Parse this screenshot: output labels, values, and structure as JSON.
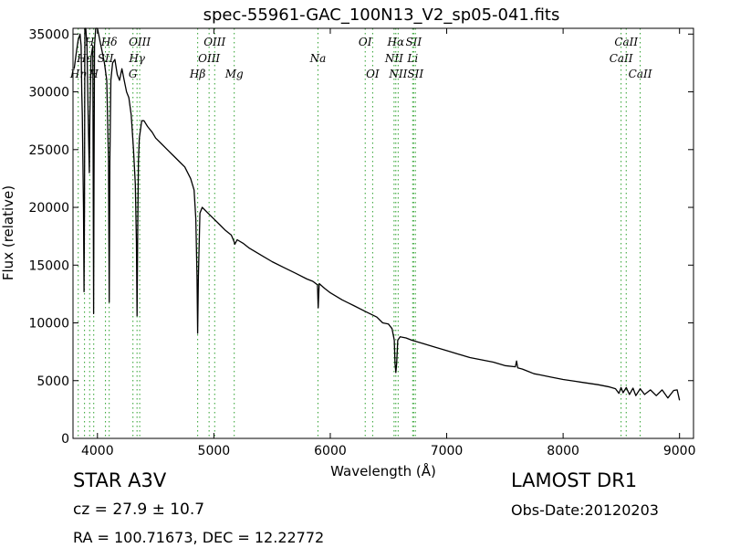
{
  "chart_data": {
    "type": "line",
    "title": "spec-55961-GAC_100N13_V2_sp05-041.fits",
    "xlabel": "Wavelength (Å)",
    "ylabel": "Flux (relative)",
    "xlim": [
      3790,
      9120
    ],
    "ylim": [
      0,
      35500
    ],
    "xticks": [
      4000,
      5000,
      6000,
      7000,
      8000,
      9000
    ],
    "yticks": [
      0,
      5000,
      10000,
      15000,
      20000,
      25000,
      30000,
      35000
    ],
    "line_color": "#000000",
    "marker_color": "#2ca02c",
    "series": [
      {
        "x": [
          3800,
          3820,
          3835,
          3845,
          3850,
          3860,
          3865,
          3870,
          3880,
          3885,
          3889,
          3892,
          3900,
          3910,
          3920,
          3930,
          3935,
          3945,
          3960,
          3967,
          3970,
          3975,
          3985,
          4000,
          4020,
          4040,
          4060,
          4080,
          4095,
          4101,
          4107,
          4115,
          4130,
          4150,
          4170,
          4190,
          4210,
          4230,
          4250,
          4270,
          4290,
          4310,
          4325,
          4335,
          4340,
          4345,
          4352,
          4360,
          4380,
          4400,
          4430,
          4470,
          4500,
          4550,
          4600,
          4650,
          4700,
          4750,
          4800,
          4830,
          4845,
          4855,
          4861,
          4867,
          4880,
          4900,
          4950,
          5000,
          5050,
          5100,
          5150,
          5175,
          5180,
          5200,
          5250,
          5300,
          5400,
          5500,
          5600,
          5700,
          5800,
          5850,
          5890,
          5896,
          5905,
          5950,
          6000,
          6100,
          6200,
          6300,
          6400,
          6450,
          6500,
          6530,
          6550,
          6556,
          6563,
          6570,
          6580,
          6600,
          6650,
          6700,
          6800,
          6900,
          7000,
          7100,
          7200,
          7300,
          7400,
          7500,
          7590,
          7600,
          7610,
          7650,
          7700,
          7750,
          7800,
          7900,
          8000,
          8100,
          8200,
          8300,
          8400,
          8450,
          8480,
          8498,
          8515,
          8542,
          8570,
          8600,
          8625,
          8662,
          8700,
          8750,
          8800,
          8850,
          8900,
          8950,
          8980,
          9000
        ],
        "y": [
          32000,
          33500,
          34500,
          34800,
          35000,
          34000,
          30000,
          28000,
          20000,
          12700,
          20000,
          35500,
          36000,
          34000,
          28000,
          23000,
          28000,
          33000,
          34000,
          10800,
          22000,
          34000,
          36000,
          35800,
          34500,
          33500,
          32500,
          31000,
          24000,
          11800,
          24000,
          31000,
          32500,
          32800,
          31500,
          31000,
          32000,
          31000,
          30000,
          29500,
          28000,
          25000,
          22000,
          17000,
          10600,
          17000,
          24000,
          26000,
          27500,
          27500,
          27000,
          26500,
          26000,
          25500,
          25000,
          24500,
          24000,
          23500,
          22500,
          21500,
          19000,
          14000,
          9100,
          14000,
          19500,
          20000,
          19500,
          19000,
          18500,
          18000,
          17600,
          17000,
          16800,
          17200,
          16900,
          16500,
          15900,
          15300,
          14800,
          14300,
          13800,
          13600,
          13300,
          11300,
          13400,
          13000,
          12600,
          12000,
          11500,
          11000,
          10500,
          10000,
          9900,
          9500,
          8500,
          6500,
          5700,
          6500,
          8500,
          8800,
          8700,
          8500,
          8200,
          7900,
          7600,
          7300,
          7000,
          6800,
          6600,
          6300,
          6200,
          6700,
          6100,
          6000,
          5800,
          5600,
          5500,
          5300,
          5100,
          4950,
          4800,
          4650,
          4450,
          4300,
          3900,
          4400,
          3950,
          4400,
          3800,
          4350,
          3700,
          4300,
          3800,
          4200,
          3700,
          4200,
          3500,
          4150,
          4200,
          3300
        ]
      }
    ],
    "lines": [
      {
        "label": "Hη",
        "x": 3835,
        "row": 3
      },
      {
        "label": "Hε",
        "x": 3889,
        "row": 2
      },
      {
        "label": "H",
        "x": 3933,
        "row": 1
      },
      {
        "label": "H",
        "x": 3968,
        "row": 3
      },
      {
        "label": "Hδ",
        "x": 4101,
        "row": 1
      },
      {
        "label": "SII",
        "x": 4069,
        "row": 2
      },
      {
        "label": "G",
        "x": 4305,
        "row": 3
      },
      {
        "label": "Hγ",
        "x": 4340,
        "row": 2
      },
      {
        "label": "OIII",
        "x": 4363,
        "row": 1
      },
      {
        "label": "Hβ",
        "x": 4861,
        "row": 3
      },
      {
        "label": "OIII",
        "x": 4959,
        "row": 2
      },
      {
        "label": "OIII",
        "x": 5007,
        "row": 1
      },
      {
        "label": "Mg",
        "x": 5175,
        "row": 3
      },
      {
        "label": "Na",
        "x": 5894,
        "row": 2
      },
      {
        "label": "OI",
        "x": 6300,
        "row": 1
      },
      {
        "label": "OI",
        "x": 6364,
        "row": 3
      },
      {
        "label": "NII",
        "x": 6548,
        "row": 2
      },
      {
        "label": "Hα",
        "x": 6563,
        "row": 1
      },
      {
        "label": "NII",
        "x": 6583,
        "row": 3
      },
      {
        "label": "Li",
        "x": 6708,
        "row": 2
      },
      {
        "label": "SII",
        "x": 6716,
        "row": 1
      },
      {
        "label": "SII",
        "x": 6731,
        "row": 3
      },
      {
        "label": "CaII",
        "x": 8498,
        "row": 2
      },
      {
        "label": "CaII",
        "x": 8542,
        "row": 1
      },
      {
        "label": "CaII",
        "x": 8662,
        "row": 3
      }
    ]
  },
  "footer": {
    "object_type": "STAR   A3V",
    "survey": "LAMOST DR1",
    "redshift": "cz = 27.9 ± 10.7",
    "obs_date": "Obs-Date:20120203",
    "coords": "RA = 100.71673, DEC = 12.22772"
  }
}
